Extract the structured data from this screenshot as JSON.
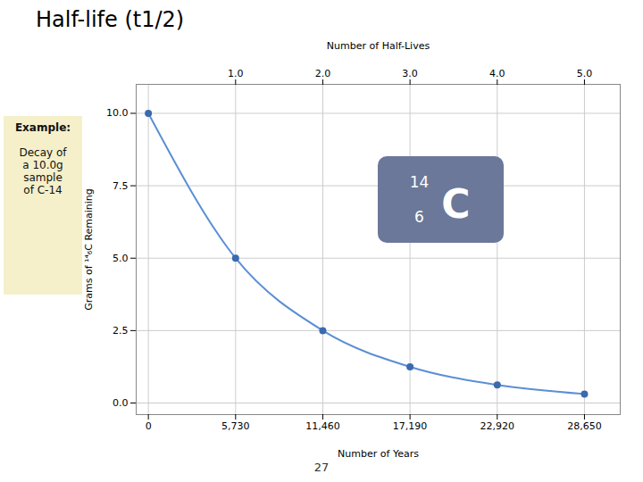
{
  "chart_data": {
    "type": "line",
    "title": "Half-life (t1/2)",
    "x": [
      0,
      5730,
      11460,
      17190,
      22920,
      28650
    ],
    "series": [
      {
        "type": "line",
        "color": "#5b8fd4",
        "values": [
          10.0,
          5.0,
          2.5,
          1.25,
          0.625,
          0.3125
        ]
      },
      {
        "type": "scatter",
        "color": "#3a6ab0",
        "values": [
          10.0,
          5.0,
          2.5,
          1.25,
          0.625,
          0.3125
        ]
      }
    ],
    "xlabel": "Number of Years",
    "ylabel": "Grams of ¹⁴₆C Remaining",
    "x2label": "Number of Half-Lives",
    "xlim": [
      -800,
      31000
    ],
    "ylim": [
      -0.4,
      11.0
    ],
    "xticks": [
      0,
      {
        "value": 5730,
        "label": "5,730"
      },
      {
        "value": 11460,
        "label": "11,460"
      },
      {
        "value": 17190,
        "label": "17,190"
      },
      {
        "value": 22920,
        "label": "22,920"
      },
      {
        "value": 28650,
        "label": "28,650"
      }
    ],
    "x2ticks": [
      {
        "value": 5730,
        "label": "1.0"
      },
      {
        "value": 11460,
        "label": "2.0"
      },
      {
        "value": 17190,
        "label": "3.0"
      },
      {
        "value": 22920,
        "label": "4.0"
      },
      {
        "value": 28650,
        "label": "5.0"
      }
    ],
    "yticks": [
      {
        "value": 0,
        "label": "0.0"
      },
      2.5,
      {
        "value": 5,
        "label": "5.0"
      },
      7.5,
      {
        "value": 10,
        "label": "10.0"
      }
    ],
    "grid": true,
    "annotations": [
      {
        "title": "Example:",
        "text": "Decay of\na 10.0g\nsample\nof C-14",
        "color": "#f5f0ca"
      },
      {
        "symbol": "C",
        "mass_number": "14",
        "atomic_number": "6",
        "color": "#6b7899"
      },
      {
        "text": "27"
      }
    ]
  }
}
